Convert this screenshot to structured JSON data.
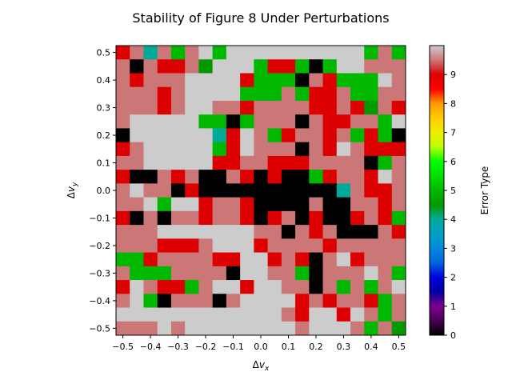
{
  "chart_data": {
    "type": "heatmap",
    "title": "Stability of Figure 8 Under Perturbations",
    "xlabel": "Δv_x",
    "ylabel": "Δv_y",
    "colorbar_label": "Error Type",
    "x_range": [
      -0.525,
      0.525
    ],
    "y_range": [
      -0.525,
      0.525
    ],
    "x_ticks": [
      -0.5,
      -0.4,
      -0.3,
      -0.2,
      -0.1,
      0.0,
      0.1,
      0.2,
      0.3,
      0.4,
      0.5
    ],
    "y_ticks": [
      -0.5,
      -0.4,
      -0.3,
      -0.2,
      -0.1,
      0.0,
      0.1,
      0.2,
      0.3,
      0.4,
      0.5
    ],
    "x_tick_labels": [
      "−0.5",
      "−0.4",
      "−0.3",
      "−0.2",
      "−0.1",
      "0.0",
      "0.1",
      "0.2",
      "0.3",
      "0.4",
      "0.5"
    ],
    "y_tick_labels": [
      "−0.5",
      "−0.4",
      "−0.3",
      "−0.2",
      "−0.1",
      "0.0",
      "0.1",
      "0.2",
      "0.3",
      "0.4",
      "0.5"
    ],
    "colorbar_ticks": [
      0,
      1,
      2,
      3,
      4,
      5,
      6,
      7,
      8,
      9
    ],
    "colorbar_range": [
      0,
      10
    ],
    "colormap": "nipy_spectral",
    "grid": false,
    "x_values": [
      -0.5,
      -0.45,
      -0.4,
      -0.35,
      -0.3,
      -0.25,
      -0.2,
      -0.15,
      -0.1,
      -0.05,
      0.0,
      0.05,
      0.1,
      0.15,
      0.2,
      0.25,
      0.3,
      0.35,
      0.4,
      0.45,
      0.5
    ],
    "y_values_top_to_bottom": [
      0.5,
      0.45,
      0.4,
      0.35,
      0.3,
      0.25,
      0.2,
      0.15,
      0.1,
      0.05,
      0.0,
      -0.05,
      -0.1,
      -0.15,
      -0.2,
      -0.25,
      -0.3,
      -0.35,
      -0.4,
      -0.45,
      -0.5
    ],
    "values_rows_top_to_bottom": [
      [
        9,
        9.5,
        4,
        9.5,
        5,
        9.5,
        10,
        5,
        10,
        10,
        10,
        10,
        10,
        10,
        10,
        10,
        10,
        10,
        5,
        9.5,
        5
      ],
      [
        9.5,
        0,
        9.5,
        9,
        9,
        9.5,
        4.5,
        10,
        10,
        10,
        5,
        9,
        9,
        5,
        0,
        5,
        10,
        10,
        9.5,
        9.5,
        9.5
      ],
      [
        9.5,
        9,
        9.5,
        9.5,
        9.5,
        10,
        10,
        10,
        10,
        9,
        5,
        5,
        5,
        0,
        9.5,
        9,
        5,
        5,
        5,
        10,
        9.5
      ],
      [
        9.5,
        9.5,
        9.5,
        9,
        9.5,
        10,
        10,
        10,
        10,
        5,
        5,
        5,
        9.5,
        5,
        9,
        9,
        9.5,
        5,
        5,
        9.5,
        9.5
      ],
      [
        9.5,
        9.5,
        9.5,
        9,
        9.5,
        10,
        10,
        9.5,
        9.5,
        9,
        9.5,
        9.5,
        9.5,
        9.5,
        9,
        9,
        9.5,
        9,
        4.5,
        9.5,
        9
      ],
      [
        9.5,
        10,
        10,
        10,
        10,
        10,
        5,
        5,
        0,
        5,
        9.5,
        9.5,
        9.5,
        0,
        9.5,
        9,
        9,
        9.5,
        9.5,
        5,
        10
      ],
      [
        0,
        10,
        10,
        10,
        10,
        10,
        10,
        4,
        9,
        10,
        9.5,
        5,
        9,
        9.5,
        9.5,
        9,
        9.5,
        5,
        9,
        5,
        0
      ],
      [
        9,
        9.5,
        10,
        10,
        10,
        10,
        10,
        5,
        9,
        10,
        9.5,
        9.5,
        9.5,
        0,
        9.5,
        9,
        10,
        9.5,
        9,
        9,
        9
      ],
      [
        9.5,
        9.5,
        10,
        10,
        10,
        10,
        10,
        9,
        9,
        9.5,
        9.5,
        9,
        9,
        9,
        9.5,
        9.5,
        9.5,
        9.5,
        0,
        5,
        9.5
      ],
      [
        9,
        0,
        0,
        9.5,
        9,
        9.5,
        0,
        0,
        9.5,
        9,
        0,
        9,
        0,
        0,
        5,
        9,
        9.5,
        9.5,
        9,
        10,
        9.5
      ],
      [
        9.5,
        10,
        9.5,
        9.5,
        0,
        9,
        0,
        0,
        0,
        0,
        0,
        0,
        0,
        0,
        0,
        0,
        4,
        9.5,
        9,
        9,
        9.5
      ],
      [
        9.5,
        9.5,
        10,
        5,
        10,
        10,
        9,
        9.5,
        9.5,
        9,
        0,
        0,
        0,
        0,
        9.5,
        0,
        0,
        9.5,
        9.5,
        9,
        9.5
      ],
      [
        9,
        0,
        9.5,
        0,
        9.5,
        9.5,
        9,
        9.5,
        9.5,
        9,
        0,
        9,
        9.5,
        0,
        9,
        0,
        0,
        9,
        9.5,
        9,
        5
      ],
      [
        9.5,
        9.5,
        9.5,
        10,
        10,
        10,
        10,
        10,
        10,
        10,
        9.5,
        9.5,
        0,
        9.5,
        9,
        9.5,
        0,
        0,
        0,
        9.5,
        9
      ],
      [
        9.5,
        9.5,
        9.5,
        9,
        9,
        9,
        9.5,
        10,
        10,
        10,
        9,
        9.5,
        9.5,
        9.5,
        9.5,
        9,
        9.5,
        9.5,
        9.5,
        9.5,
        9.5
      ],
      [
        5,
        5,
        9,
        9.5,
        9.5,
        9.5,
        9.5,
        9,
        9,
        10,
        10,
        9,
        9.5,
        9,
        0,
        9.5,
        10,
        9,
        9.5,
        9.5,
        9.5
      ],
      [
        9.5,
        5,
        5,
        5,
        9.5,
        9.5,
        9.5,
        9.5,
        0,
        10,
        10,
        9.5,
        9.5,
        5,
        0,
        9.5,
        9.5,
        9.5,
        10,
        9.5,
        5
      ],
      [
        9,
        10,
        9.5,
        9,
        9,
        5,
        9.5,
        10,
        10,
        9,
        10,
        10,
        9.5,
        9.5,
        0,
        9.5,
        5,
        9.5,
        5,
        9.5,
        10
      ],
      [
        9.5,
        10,
        5,
        0,
        9.5,
        9.5,
        9.5,
        0,
        9.5,
        10,
        10,
        10,
        10,
        9,
        9.5,
        9,
        9.5,
        9.5,
        9,
        5,
        9.5
      ],
      [
        10,
        10,
        10,
        10,
        10,
        10,
        10,
        10,
        10,
        10,
        10,
        10,
        9.5,
        9,
        10,
        10,
        9,
        10,
        9.5,
        5,
        9.5
      ],
      [
        9.5,
        9.5,
        9.5,
        10,
        9.5,
        10,
        10,
        10,
        10,
        10,
        10,
        10,
        10,
        9.5,
        10,
        10,
        10,
        9.5,
        5,
        9.5,
        4.5
      ]
    ]
  }
}
